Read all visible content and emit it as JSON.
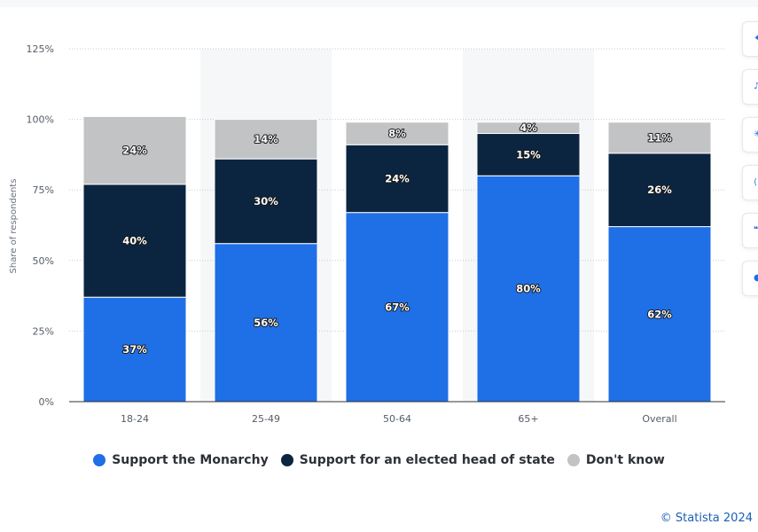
{
  "chart_data": {
    "type": "bar",
    "stacked": true,
    "categories": [
      "18-24",
      "25-49",
      "50-64",
      "65+",
      "Overall"
    ],
    "series": [
      {
        "name": "Support the Monarchy",
        "values": [
          37,
          56,
          67,
          80,
          62
        ],
        "color": "#1f6fe6",
        "label_color": "#ffffff"
      },
      {
        "name": "Support for an elected head of state",
        "values": [
          40,
          30,
          24,
          15,
          26
        ],
        "color": "#0b2540",
        "label_color": "#ffffff"
      },
      {
        "name": "Don't know",
        "values": [
          24,
          14,
          8,
          4,
          11
        ],
        "color": "#c2c3c5",
        "label_color": "#ffffff"
      }
    ],
    "ylabel": "Share of respondents",
    "xlabel": "",
    "ylim": [
      0,
      125
    ],
    "yticks": [
      0,
      25,
      50,
      75,
      100,
      125
    ],
    "ytick_suffix": "%",
    "value_suffix": "%",
    "grid": true,
    "legend_position": "bottom",
    "highlight_bands": [
      1,
      3
    ]
  },
  "legend": {
    "items": [
      {
        "label": "Support the Monarchy",
        "color": "#1f6fe6"
      },
      {
        "label": "Support for an elected head of state",
        "color": "#0b2540"
      },
      {
        "label": "Don't know",
        "color": "#c2c3c5"
      }
    ]
  },
  "credit": "© Statista 2024",
  "toolbar": {
    "buttons": [
      {
        "icon": "star-icon",
        "glyph": "✦"
      },
      {
        "icon": "bell-icon",
        "glyph": "♪"
      },
      {
        "icon": "settings-icon",
        "glyph": "✳"
      },
      {
        "icon": "share-icon",
        "glyph": "⟨"
      },
      {
        "icon": "quote-icon",
        "glyph": "❝"
      },
      {
        "icon": "print-icon",
        "glyph": "●"
      }
    ]
  }
}
